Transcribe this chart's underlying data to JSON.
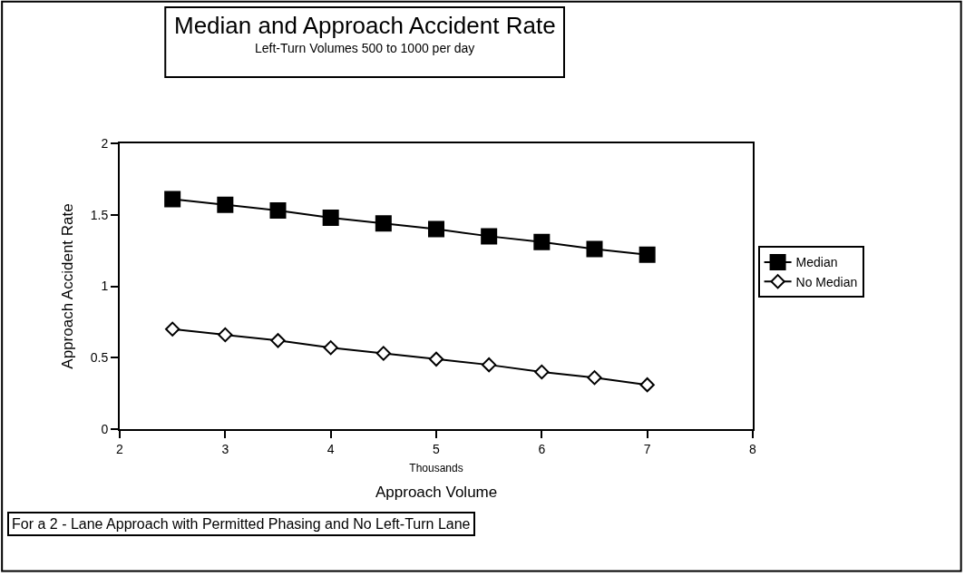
{
  "chart_data": {
    "type": "line",
    "title": "Median and Approach Accident Rate",
    "subtitle": "Left-Turn Volumes 500 to 1000 per day",
    "xlabel": "Thousands",
    "ylabel": "Approach Accident Rate",
    "annotations": [
      "Approach Volume",
      "For a 2 - Lane Approach with Permitted Phasing and No Left-Turn Lane"
    ],
    "x": [
      2.5,
      3,
      3.5,
      4,
      4.5,
      5,
      5.5,
      6,
      6.5,
      7
    ],
    "series": [
      {
        "name": "Median",
        "color": "#000000",
        "marker": "square",
        "values": [
          1.61,
          1.57,
          1.53,
          1.48,
          1.44,
          1.4,
          1.35,
          1.31,
          1.26,
          1.22
        ]
      },
      {
        "name": "No Median",
        "color": "#000000",
        "marker": "diamond",
        "values": [
          0.7,
          0.66,
          0.62,
          0.57,
          0.53,
          0.49,
          0.45,
          0.4,
          0.36,
          0.31
        ]
      }
    ],
    "xlim": [
      2,
      8
    ],
    "xticks": [
      2,
      3,
      4,
      5,
      6,
      7,
      8
    ],
    "ylim": [
      0,
      2
    ],
    "yticks": [
      0,
      0.5,
      1,
      1.5,
      2
    ],
    "legend": "right",
    "line_style": "solid"
  }
}
